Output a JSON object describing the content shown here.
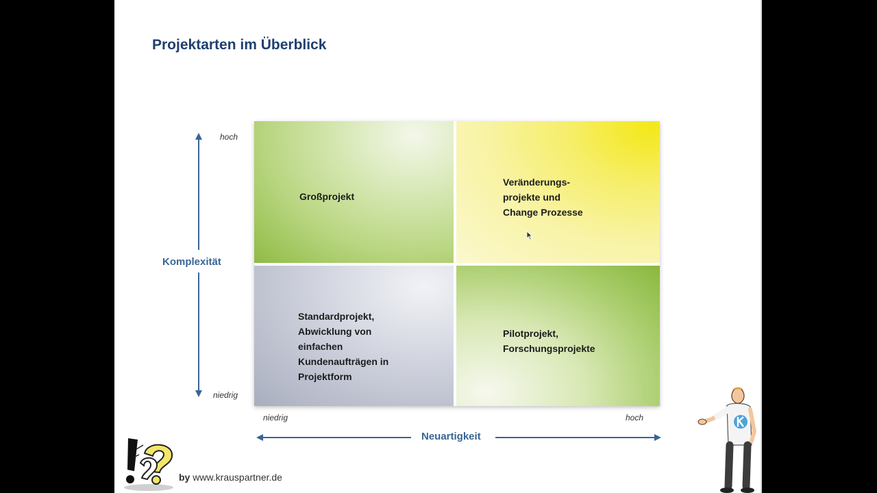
{
  "slide": {
    "title": "Projektarten im Überblick"
  },
  "quadrants": {
    "top_left": "Großprojekt",
    "top_right": [
      "Veränderungs-",
      "projekte und",
      "Change Prozesse"
    ],
    "bottom_left": [
      "Standardprojekt,",
      "Abwicklung von",
      "einfachen",
      "Kundenaufträgen in",
      "Projektform"
    ],
    "bottom_right": [
      "Pilotprojekt,",
      "Forschungsprojekte"
    ]
  },
  "y_axis": {
    "label": "Komplexität",
    "high": "hoch",
    "low": "niedrig"
  },
  "x_axis": {
    "label": "Neuartigkeit",
    "low": "niedrig",
    "high": "hoch"
  },
  "footer": {
    "by": "by",
    "url": "www.krauspartner.de"
  },
  "colors": {
    "title": "#1f3f6e",
    "axis": "#3a6595",
    "green": "#8fbb45",
    "yellow": "#f4e81a",
    "grey": "#a9aebf"
  }
}
